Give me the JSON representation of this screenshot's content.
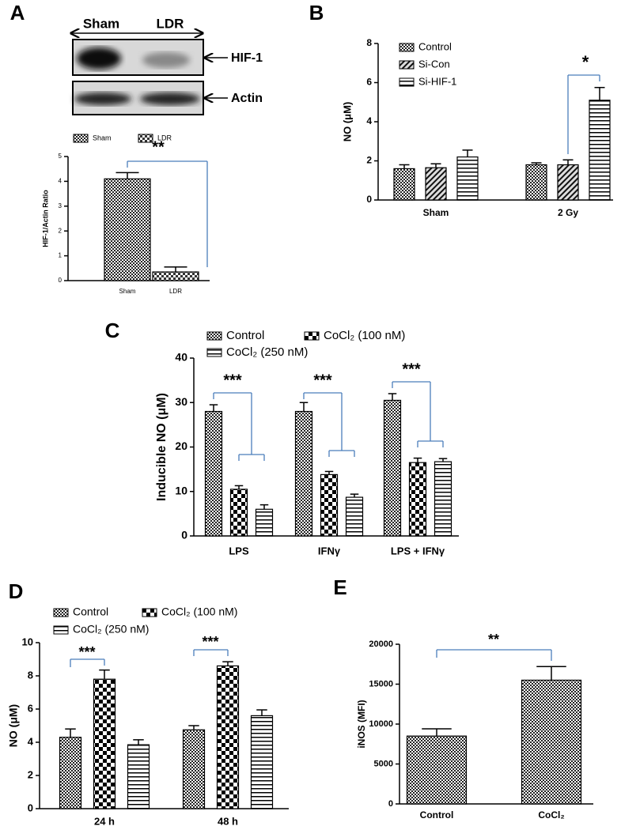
{
  "blot": {
    "panel": "A",
    "lanes": [
      "Sham",
      "LDR"
    ],
    "bands": [
      "HIF-1",
      "Actin"
    ]
  },
  "chart_data": [
    {
      "type": "bar",
      "panel": "",
      "ylabel": "HIF-1/Actin Ratio",
      "categories": [
        "Sham",
        "LDR"
      ],
      "series": [
        {
          "name": "Sham",
          "color": "#000000",
          "pattern": "crosshatch",
          "values": [
            4.1,
            null
          ],
          "errors": [
            0.25,
            null
          ]
        },
        {
          "name": "LDR",
          "color": "#000000",
          "pattern": "checker-small",
          "values": [
            null,
            0.35
          ],
          "errors": [
            null,
            0.2
          ]
        }
      ],
      "ylim": [
        0,
        5
      ],
      "yticks": [
        0,
        1,
        2,
        3,
        4,
        5
      ],
      "annotations": [
        "**"
      ]
    },
    {
      "type": "bar",
      "panel": "B",
      "ylabel": "NO (μM)",
      "categories": [
        "Sham",
        "2 Gy"
      ],
      "series": [
        {
          "name": "Control",
          "color": "#000000",
          "pattern": "crosshatch",
          "values": [
            1.6,
            1.8
          ],
          "errors": [
            0.2,
            0.1
          ]
        },
        {
          "name": "Si-Con",
          "color": "#000000",
          "pattern": "diagonal",
          "values": [
            1.65,
            1.8
          ],
          "errors": [
            0.2,
            0.25
          ]
        },
        {
          "name": "Si-HIF-1",
          "color": "#000000",
          "pattern": "hlines",
          "values": [
            2.2,
            5.1
          ],
          "errors": [
            0.35,
            0.65
          ]
        }
      ],
      "ylim": [
        0,
        8
      ],
      "yticks": [
        0,
        2,
        4,
        6,
        8
      ],
      "annotations": [
        "*"
      ]
    },
    {
      "type": "bar",
      "panel": "C",
      "ylabel": "Inducible NO (μM)",
      "categories": [
        "LPS",
        "IFNγ",
        "LPS + IFNγ"
      ],
      "series": [
        {
          "name": "Control",
          "color": "#000000",
          "pattern": "crosshatch",
          "values": [
            28,
            28,
            30.5
          ],
          "errors": [
            1.5,
            2,
            1.5
          ]
        },
        {
          "name": "CoCl₂ (100 nM)",
          "color": "#000000",
          "pattern": "checker",
          "values": [
            10.5,
            13.8,
            16.5
          ],
          "errors": [
            0.8,
            0.7,
            1
          ]
        },
        {
          "name": "CoCl₂ (250 nM)",
          "color": "#000000",
          "pattern": "hlines",
          "values": [
            6,
            8.7,
            16.7
          ],
          "errors": [
            1,
            0.7,
            0.7
          ]
        }
      ],
      "ylim": [
        0,
        40
      ],
      "yticks": [
        0,
        10,
        20,
        30,
        40
      ],
      "annotations": [
        "***",
        "***",
        "***"
      ]
    },
    {
      "type": "bar",
      "panel": "D",
      "ylabel": "NO (μM)",
      "categories": [
        "24 h",
        "48 h"
      ],
      "series": [
        {
          "name": "Control",
          "color": "#000000",
          "pattern": "crosshatch",
          "values": [
            4.3,
            4.75
          ],
          "errors": [
            0.5,
            0.25
          ]
        },
        {
          "name": "CoCl₂ (100 nM)",
          "color": "#000000",
          "pattern": "checker",
          "values": [
            7.8,
            8.6
          ],
          "errors": [
            0.55,
            0.25
          ]
        },
        {
          "name": "CoCl₂ (250 nM)",
          "color": "#000000",
          "pattern": "hlines",
          "values": [
            3.85,
            5.6
          ],
          "errors": [
            0.3,
            0.35
          ]
        }
      ],
      "ylim": [
        0,
        10
      ],
      "yticks": [
        0,
        2,
        4,
        6,
        8,
        10
      ],
      "annotations": [
        "***",
        "***"
      ]
    },
    {
      "type": "bar",
      "panel": "E",
      "ylabel": "iNOS (MFI)",
      "categories": [
        "Control",
        "CoCl₂"
      ],
      "color": "#000000",
      "pattern": "crosshatch",
      "values": [
        8500,
        15500
      ],
      "errors": [
        900,
        1700
      ],
      "ylim": [
        0,
        20000
      ],
      "yticks": [
        0,
        5000,
        10000,
        15000,
        20000
      ],
      "annotations": [
        "**"
      ]
    }
  ]
}
